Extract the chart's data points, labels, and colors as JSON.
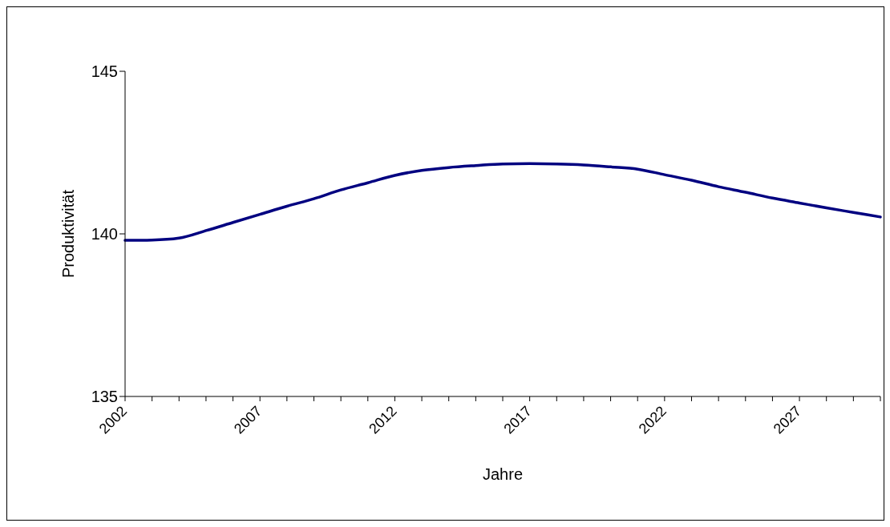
{
  "chart_data": {
    "type": "line",
    "xlabel": "Jahre",
    "ylabel": "Produktivität",
    "categories": [
      "2002",
      null,
      null,
      null,
      null,
      "2007",
      null,
      null,
      null,
      null,
      "2012",
      null,
      null,
      null,
      null,
      "2017",
      null,
      null,
      null,
      null,
      "2022",
      null,
      null,
      null,
      null,
      "2027",
      null,
      null,
      null
    ],
    "series": [
      {
        "color": "#000080",
        "values": [
          139.8,
          139.81,
          139.87,
          140.1,
          140.35,
          140.6,
          140.85,
          141.08,
          141.35,
          141.57,
          141.8,
          141.95,
          142.04,
          142.1,
          142.15,
          142.16,
          142.15,
          142.12,
          142.06,
          141.99,
          141.82,
          141.65,
          141.45,
          141.28,
          141.1,
          140.95,
          140.8,
          140.66,
          140.52
        ]
      }
    ],
    "ylim": [
      135,
      145
    ],
    "yticks": [
      135,
      140,
      145
    ],
    "marker": "none",
    "line_style": "solid"
  }
}
